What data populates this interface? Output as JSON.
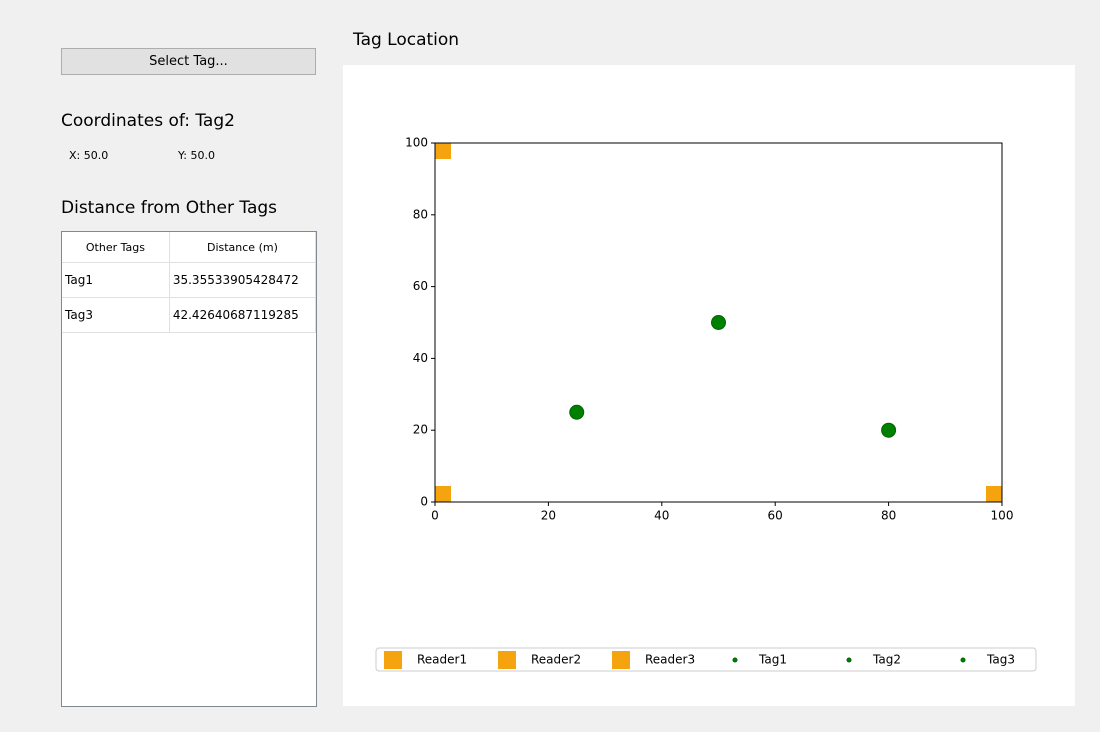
{
  "button": "Select Tag...",
  "coordinates": {
    "title": "Coordinates of: Tag2",
    "x": "X: 50.0",
    "y": "Y: 50.0"
  },
  "distance": {
    "title": "Distance from Other Tags",
    "table": {
      "columns": [
        "Other Tags",
        "Distance (m)"
      ],
      "rows": [
        [
          "Tag1",
          "35.35533905428472"
        ],
        [
          "Tag3",
          "42.42640687119285"
        ]
      ]
    }
  },
  "chart_data": {
    "type": "scatter",
    "title": "Tag Location",
    "xlim": [
      0,
      100
    ],
    "ylim": [
      0,
      100
    ],
    "xticks": [
      0,
      20,
      40,
      60,
      80,
      100
    ],
    "yticks": [
      0,
      20,
      40,
      60,
      80,
      100
    ],
    "legend": "lower center",
    "series": [
      {
        "name": "Reader1",
        "color": "#f5a30f",
        "marker": "square",
        "x": [
          0
        ],
        "values": [
          0
        ]
      },
      {
        "name": "Reader2",
        "color": "#f5a30f",
        "marker": "square",
        "x": [
          100
        ],
        "values": [
          0
        ]
      },
      {
        "name": "Reader3",
        "color": "#f5a30f",
        "marker": "square",
        "x": [
          0
        ],
        "values": [
          100
        ]
      },
      {
        "name": "Tag1",
        "color": "#008000",
        "marker": "circle",
        "x": [
          25
        ],
        "values": [
          25
        ]
      },
      {
        "name": "Tag2",
        "color": "#008000",
        "marker": "circle",
        "x": [
          50
        ],
        "values": [
          50
        ]
      },
      {
        "name": "Tag3",
        "color": "#008000",
        "marker": "circle",
        "x": [
          80
        ],
        "values": [
          20
        ]
      }
    ]
  }
}
